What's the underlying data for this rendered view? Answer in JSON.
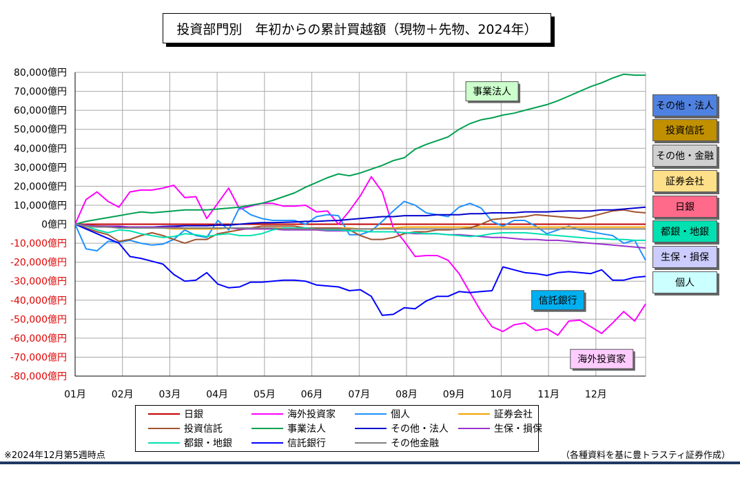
{
  "chart_data": {
    "type": "line",
    "title": "投資部門別　年初からの累計買越額（現物＋先物、2024年）",
    "y_axis": {
      "min": -80000,
      "max": 80000,
      "step": 10000,
      "tick_labels": [
        "80,000億円",
        "70,000億円",
        "60,000億円",
        "50,000億円",
        "40,000億円",
        "30,000億円",
        "20,000億円",
        "10,000億円",
        "0億円",
        "-10,000億円",
        "-20,000億円",
        "-30,000億円",
        "-40,000億円",
        "-50,000億円",
        "-60,000億円",
        "-70,000億円",
        "-80,000億円"
      ]
    },
    "x_axis": {
      "tick_labels": [
        "01月",
        "02月",
        "03月",
        "04月",
        "05月",
        "06月",
        "07月",
        "08月",
        "09月",
        "10月",
        "11月",
        "12月"
      ],
      "week_range": [
        0,
        52
      ]
    },
    "grid": true,
    "series": [
      {
        "name": "日銀",
        "color": "#c00000",
        "values": [
          0,
          0,
          0,
          0,
          0,
          0,
          0,
          0,
          0,
          0,
          0,
          0,
          0,
          0,
          0,
          0,
          0,
          0,
          0,
          0,
          0,
          0,
          0,
          0,
          0,
          0,
          0,
          0,
          0,
          0,
          0,
          0,
          0,
          0,
          0,
          0,
          0,
          0,
          0,
          0,
          0,
          0,
          0,
          0,
          0,
          0,
          0,
          0,
          0,
          0,
          0,
          0,
          0
        ]
      },
      {
        "name": "海外投資家",
        "color": "#ff00ff",
        "values": [
          0,
          13000,
          17000,
          12000,
          9000,
          17000,
          18000,
          18000,
          19000,
          20500,
          14000,
          14500,
          3000,
          11000,
          19000,
          8000,
          9500,
          11000,
          11000,
          9500,
          9500,
          10000,
          6500,
          7000,
          0,
          7000,
          15000,
          25000,
          17000,
          -2000,
          -9000,
          -17000,
          -16500,
          -16500,
          -19000,
          -26000,
          -36000,
          -46000,
          -54000,
          -56500,
          -53000,
          -52000,
          -56000,
          -55000,
          -58500,
          -51000,
          -50500,
          -54000,
          -57500,
          -52000,
          -46000,
          -51000,
          -42000
        ]
      },
      {
        "name": "個人",
        "color": "#1e90ff",
        "values": [
          0,
          -13000,
          -14000,
          -9000,
          -9500,
          -8500,
          -10000,
          -11000,
          -10500,
          -8000,
          -3000,
          -6000,
          -7000,
          2000,
          -3000,
          9000,
          5000,
          3000,
          2000,
          2000,
          2000,
          0,
          4000,
          5000,
          4500,
          -5500,
          -5500,
          -3500,
          1500,
          7000,
          12000,
          10000,
          6000,
          5000,
          4000,
          9000,
          11000,
          8500,
          1500,
          -1000,
          2000,
          2000,
          -1000,
          -5000,
          -3000,
          -1000,
          -3000,
          -4000,
          -5000,
          -6000,
          -10000,
          -8500,
          -19000
        ]
      },
      {
        "name": "証券会社",
        "color": "#f4a100",
        "values": [
          0,
          -500,
          -800,
          -1000,
          -1500,
          -1500,
          -2000,
          -2000,
          -2000,
          -2500,
          -2500,
          -2500,
          -2500,
          -2500,
          -2000,
          -2000,
          -2000,
          -2000,
          -2000,
          -2000,
          -2000,
          -2000,
          -2000,
          -2000,
          -2000,
          -2000,
          -2500,
          -2500,
          -2000,
          -2000,
          -1500,
          -1500,
          -1500,
          -1500,
          -1500,
          -1500,
          -1500,
          -1500,
          -1500,
          -1500,
          -1500,
          -1500,
          -1500,
          -1500,
          -1500,
          -1500,
          -1500,
          -1500,
          -1500,
          -1500,
          -1500,
          -1500,
          -1500
        ]
      },
      {
        "name": "投資信託",
        "color": "#a0522d",
        "values": [
          0,
          -2000,
          -4000,
          -5500,
          -9000,
          -8000,
          -6000,
          -4500,
          -6000,
          -8000,
          -10000,
          -8000,
          -8000,
          -5000,
          -4000,
          -3000,
          -2000,
          -1000,
          -1000,
          -1000,
          -1000,
          -2000,
          -2000,
          -2000,
          -2000,
          -3000,
          -6000,
          -8000,
          -8000,
          -7000,
          -5000,
          -4000,
          -4000,
          -3000,
          -3000,
          -2500,
          -2000,
          0,
          2500,
          3000,
          3500,
          4000,
          5000,
          4500,
          4000,
          3500,
          3000,
          4000,
          5500,
          7000,
          7500,
          6500,
          6000
        ]
      },
      {
        "name": "事業法人",
        "color": "#00a050",
        "values": [
          0,
          1500,
          2500,
          3500,
          4500,
          5500,
          6500,
          6000,
          6500,
          7000,
          7500,
          7500,
          7500,
          8000,
          8500,
          9000,
          10000,
          11000,
          12500,
          14500,
          16500,
          19500,
          22000,
          24500,
          26500,
          25500,
          27000,
          29000,
          31000,
          33500,
          35000,
          39500,
          42000,
          44000,
          46000,
          50000,
          53000,
          55000,
          56000,
          57500,
          58500,
          60000,
          61500,
          63000,
          65000,
          67500,
          70000,
          72500,
          74500,
          77000,
          79000,
          78500,
          78500
        ]
      },
      {
        "name": "その他・法人",
        "color": "#0000cd",
        "values": [
          0,
          -1000,
          -1200,
          -1500,
          -1500,
          -1500,
          -1500,
          -1500,
          -1200,
          -1000,
          -800,
          -800,
          -800,
          -500,
          -500,
          0,
          500,
          800,
          800,
          1000,
          1200,
          1500,
          1500,
          1800,
          2000,
          2500,
          3000,
          3500,
          4000,
          4000,
          4500,
          4500,
          4500,
          5000,
          5000,
          5000,
          5500,
          5500,
          6000,
          6000,
          6000,
          6500,
          6500,
          6500,
          6800,
          7000,
          7000,
          7000,
          7500,
          7500,
          8000,
          8500,
          9000
        ]
      },
      {
        "name": "生保・損保",
        "color": "#9932cc",
        "values": [
          0,
          -500,
          -1000,
          -1000,
          -1000,
          -1500,
          -1500,
          -1500,
          -1500,
          -1500,
          -2000,
          -2000,
          -2000,
          -2000,
          -2000,
          -2500,
          -2500,
          -2500,
          -2500,
          -3000,
          -3000,
          -3000,
          -3000,
          -3500,
          -3500,
          -3500,
          -3500,
          -4000,
          -4000,
          -4000,
          -4500,
          -5000,
          -5000,
          -5000,
          -5500,
          -5500,
          -6000,
          -6500,
          -7000,
          -7000,
          -7500,
          -8000,
          -8000,
          -8500,
          -8500,
          -9000,
          -9500,
          -10000,
          -10500,
          -11000,
          -11500,
          -12000,
          -12500
        ]
      },
      {
        "name": "都銀・地銀",
        "color": "#00e0b0",
        "values": [
          0,
          -1000,
          -3000,
          -4500,
          -3000,
          -3500,
          -5000,
          -6000,
          -7000,
          -6500,
          -5000,
          -5500,
          -6500,
          -5500,
          -5000,
          -6000,
          -6000,
          -5000,
          -3000,
          -2000,
          -2000,
          -2000,
          -2500,
          -3000,
          -3000,
          -3500,
          -3500,
          -4000,
          -4000,
          -4000,
          -4500,
          -4500,
          -5000,
          -5000,
          -5500,
          -6000,
          -6500,
          -6000,
          -5000,
          -4500,
          -4500,
          -4500,
          -5000,
          -5500,
          -6000,
          -6500,
          -7000,
          -7500,
          -7500,
          -8000,
          -8000,
          -8500,
          -8500
        ]
      },
      {
        "name": "信託銀行",
        "color": "#0000ff",
        "values": [
          0,
          -2500,
          -5000,
          -7500,
          -10000,
          -17000,
          -18000,
          -19500,
          -21000,
          -26500,
          -30000,
          -29500,
          -25500,
          -31500,
          -33500,
          -33000,
          -30500,
          -30500,
          -30000,
          -29500,
          -29500,
          -30000,
          -32000,
          -32500,
          -33000,
          -35000,
          -34500,
          -38000,
          -48000,
          -47500,
          -44000,
          -44500,
          -40500,
          -38000,
          -38000,
          -35500,
          -36000,
          -35500,
          -35000,
          -22500,
          -24000,
          -25500,
          -26000,
          -27000,
          -25500,
          -25000,
          -25500,
          -26000,
          -24000,
          -29500,
          -29500,
          -28000,
          -27500
        ]
      },
      {
        "name": "その他金融",
        "color": "#808080",
        "values": [
          0,
          -1000,
          -1500,
          -1500,
          -2000,
          -2000,
          -2000,
          -2000,
          -2000,
          -2000,
          -2000,
          -2000,
          -2000,
          -2000,
          -2000,
          -2000,
          -2000,
          -2000,
          -2000,
          -2500,
          -2500,
          -2500,
          -2500,
          -2500,
          -2500,
          -2500,
          -2500,
          -2500,
          -2500,
          -2500,
          -2500,
          -2500,
          -2500,
          -2500,
          -2500,
          -2500,
          -2500,
          -2500,
          -2500,
          -2500,
          -2500,
          -2500,
          -2500,
          -2500,
          -2500,
          -2500,
          -2500,
          -2500,
          -2500,
          -2500,
          -2500,
          -2500,
          -2500
        ]
      }
    ],
    "annotations": [
      {
        "text": "事業法人",
        "week": 38,
        "value": 70000,
        "bg": "#ccffcc"
      },
      {
        "text": "信託銀行",
        "week": 44,
        "value": -40000,
        "bg": "#00b0f0"
      },
      {
        "text": "海外投資家",
        "week": 48,
        "value": -71000,
        "bg": "#ffccff"
      }
    ]
  },
  "side_labels": [
    {
      "text": "その他・法人",
      "bg": "#4f81e0"
    },
    {
      "text": "投資信託",
      "bg": "#c09000"
    },
    {
      "text": "その他・金融",
      "bg": "#d0d0d0"
    },
    {
      "text": "証券会社",
      "bg": "#ffe08a"
    },
    {
      "text": "日銀",
      "bg": "#ff6a8a"
    },
    {
      "text": "都銀・地銀",
      "bg": "#00e0b0"
    },
    {
      "text": "生保・損保",
      "bg": "#ccccff"
    },
    {
      "text": "個人",
      "bg": "#ccffff"
    }
  ],
  "legend": {
    "rows": [
      [
        "日銀",
        "海外投資家",
        "個人",
        "証券会社"
      ],
      [
        "投資信託",
        "事業法人",
        "その他・法人",
        "生保・損保"
      ],
      [
        "都銀・地銀",
        "信託銀行",
        "その他金融"
      ]
    ],
    "colors": {
      "日銀": "#c00000",
      "海外投資家": "#ff00ff",
      "個人": "#1e90ff",
      "証券会社": "#f4a100",
      "投資信託": "#a0522d",
      "事業法人": "#00a050",
      "その他・法人": "#0000cd",
      "生保・損保": "#9932cc",
      "都銀・地銀": "#00e0b0",
      "信託銀行": "#0000ff",
      "その他金融": "#808080"
    }
  },
  "footer": {
    "left_note": "※2024年12月第5週時点",
    "right_note": "（各種資料を基に豊トラスティ証券作成）"
  }
}
